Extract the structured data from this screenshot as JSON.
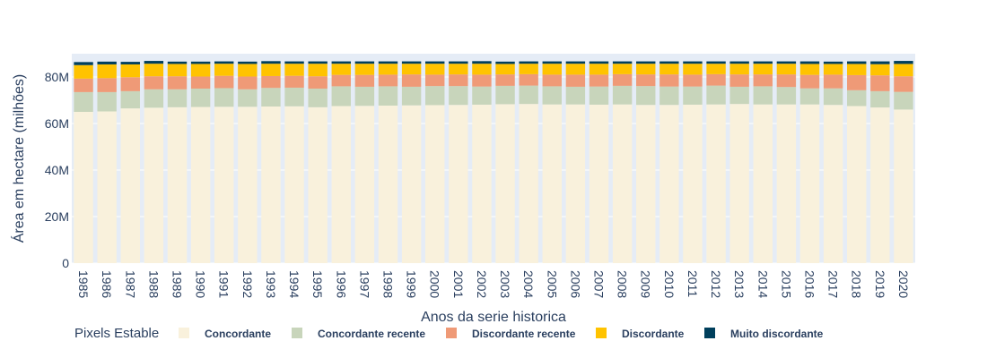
{
  "chart_data": {
    "type": "bar",
    "stacked": true,
    "xlabel": "Anos da serie historica",
    "ylabel": "Área em hectare (milhões)",
    "ylim": [
      0,
      90000000
    ],
    "yticks": [
      {
        "value": 0,
        "label": "0"
      },
      {
        "value": 20000000,
        "label": "20M"
      },
      {
        "value": 40000000,
        "label": "40M"
      },
      {
        "value": 60000000,
        "label": "60M"
      },
      {
        "value": 80000000,
        "label": "80M"
      }
    ],
    "grid": true,
    "legend_title": "Pixels Estable",
    "legend_position": "bottom",
    "categories": [
      "1985",
      "1986",
      "1987",
      "1988",
      "1989",
      "1990",
      "1991",
      "1992",
      "1993",
      "1994",
      "1995",
      "1996",
      "1997",
      "1998",
      "1999",
      "2000",
      "2001",
      "2002",
      "2003",
      "2004",
      "2005",
      "2006",
      "2007",
      "2008",
      "2009",
      "2010",
      "2011",
      "2012",
      "2013",
      "2014",
      "2015",
      "2016",
      "2017",
      "2018",
      "2019",
      "2020"
    ],
    "series": [
      {
        "name": "Concordante",
        "color": "#f9f1dc",
        "values": [
          65000000,
          65200000,
          66500000,
          66800000,
          67000000,
          67100000,
          67200000,
          67200000,
          67300000,
          67400000,
          67000000,
          67500000,
          67600000,
          67700000,
          67800000,
          67900000,
          68000000,
          68100000,
          68300000,
          68400000,
          68200000,
          68200000,
          68100000,
          68200000,
          68000000,
          68000000,
          68100000,
          68200000,
          68400000,
          68200000,
          68200000,
          68200000,
          68000000,
          67500000,
          66900000,
          66000000
        ]
      },
      {
        "name": "Concordante recente",
        "color": "#c8d5bb",
        "values": [
          8500000,
          8300000,
          7400000,
          7900000,
          7700000,
          7900000,
          8000000,
          7500000,
          8000000,
          8000000,
          8000000,
          8500000,
          8200000,
          8300000,
          8000000,
          8200000,
          8100000,
          7800000,
          7900000,
          7900000,
          7800000,
          7600000,
          7800000,
          8000000,
          8100000,
          7900000,
          7800000,
          8100000,
          7400000,
          7800000,
          7500000,
          6900000,
          7100000,
          6800000,
          7000000,
          7600000
        ]
      },
      {
        "name": "Discordante recente",
        "color": "#ef9a77",
        "values": [
          5800000,
          6000000,
          6000000,
          5600000,
          5600000,
          5200000,
          5300000,
          5500000,
          5100000,
          5100000,
          5300000,
          4900000,
          5100000,
          5000000,
          5300000,
          4900000,
          5000000,
          5100000,
          4900000,
          4900000,
          5000000,
          5200000,
          5100000,
          5000000,
          5000000,
          5200000,
          5100000,
          4900000,
          5300000,
          5100000,
          5400000,
          5800000,
          5900000,
          6500000,
          6800000,
          6700000
        ]
      },
      {
        "name": "Discordante",
        "color": "#ffc300",
        "values": [
          5800000,
          5900000,
          5500000,
          5400000,
          5300000,
          5400000,
          5200000,
          5400000,
          5300000,
          5200000,
          5400000,
          4800000,
          4800000,
          4700000,
          4600000,
          4700000,
          4600000,
          4700000,
          4500000,
          4500000,
          4700000,
          4700000,
          4700000,
          4500000,
          4600000,
          4600000,
          4700000,
          4500000,
          4600000,
          4600000,
          4600000,
          4700000,
          4600000,
          4800000,
          4800000,
          5300000
        ]
      },
      {
        "name": "Muito discordante",
        "color": "#003f5c",
        "values": [
          1300000,
          1200000,
          1100000,
          1200000,
          1000000,
          1000000,
          1000000,
          1000000,
          1100000,
          1000000,
          1000000,
          1000000,
          1000000,
          1000000,
          1000000,
          1000000,
          1000000,
          1100000,
          1000000,
          1000000,
          1000000,
          1000000,
          1000000,
          1000000,
          1000000,
          1000000,
          1000000,
          1000000,
          1000000,
          1000000,
          1000000,
          1100000,
          1000000,
          1100000,
          1200000,
          1300000
        ]
      }
    ]
  }
}
